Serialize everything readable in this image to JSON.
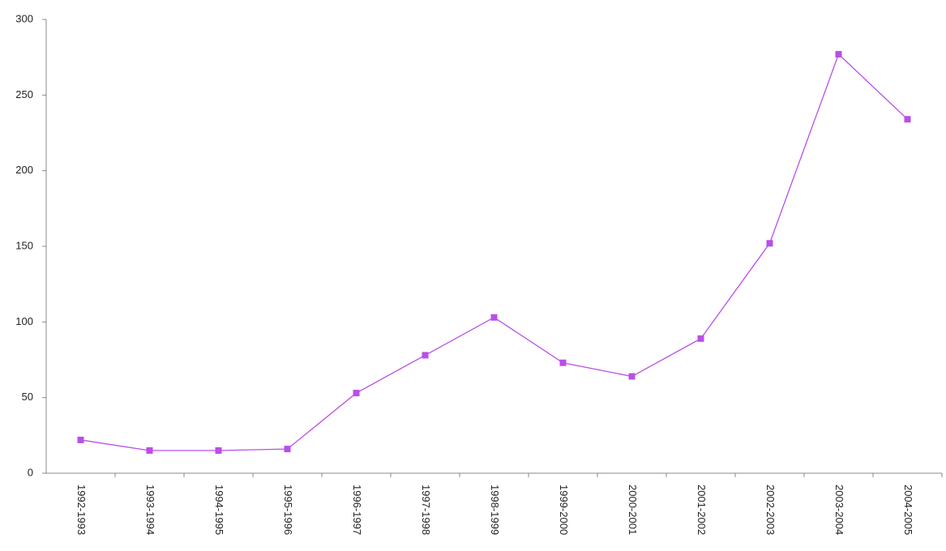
{
  "chart_data": {
    "type": "line",
    "categories": [
      "1992-1993",
      "1993-1994",
      "1994-1995",
      "1995-1996",
      "1996-1997",
      "1997-1998",
      "1998-1999",
      "1999-2000",
      "2000-2001",
      "2001-2002",
      "2002-2003",
      "2003-2004",
      "2004-2005"
    ],
    "series": [
      {
        "color": "#b94fe6",
        "values": [
          22,
          15,
          15,
          16,
          53,
          78,
          103,
          73,
          64,
          89,
          152,
          277,
          234
        ]
      }
    ],
    "ylim": [
      0,
      300
    ],
    "yticks": [
      0,
      50,
      100,
      150,
      200,
      250,
      300
    ],
    "grid": false
  }
}
